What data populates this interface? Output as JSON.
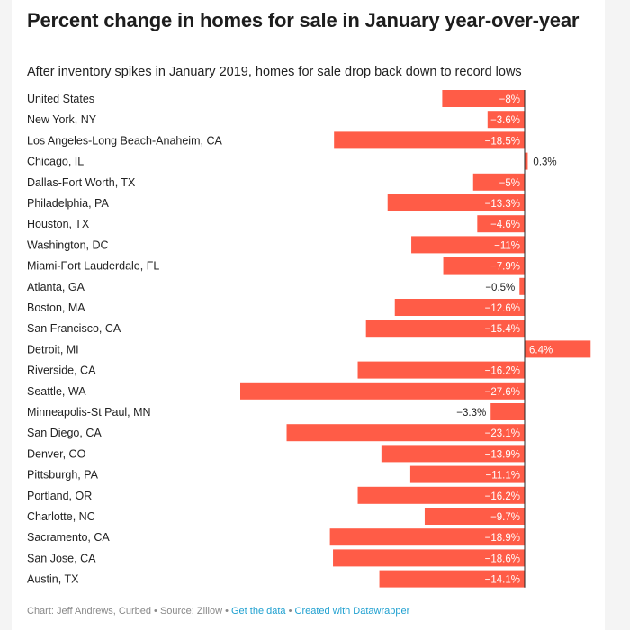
{
  "chart_data": {
    "type": "bar",
    "orientation": "horizontal",
    "title": "Percent change in homes for sale in January year-over-year",
    "subtitle": "After inventory spikes in January 2019, homes for sale drop back down to record lows",
    "categories": [
      "United States",
      "New York, NY",
      "Los Angeles-Long Beach-Anaheim, CA",
      "Chicago, IL",
      "Dallas-Fort Worth, TX",
      "Philadelphia, PA",
      "Houston, TX",
      "Washington, DC",
      "Miami-Fort Lauderdale, FL",
      "Atlanta, GA",
      "Boston, MA",
      "San Francisco, CA",
      "Detroit, MI",
      "Riverside, CA",
      "Seattle, WA",
      "Minneapolis-St Paul, MN",
      "San Diego, CA",
      "Denver, CO",
      "Pittsburgh, PA",
      "Portland, OR",
      "Charlotte, NC",
      "Sacramento, CA",
      "San Jose, CA",
      "Austin, TX"
    ],
    "values": [
      -8,
      -3.6,
      -18.5,
      0.3,
      -5,
      -13.3,
      -4.6,
      -11,
      -7.9,
      -0.5,
      -12.6,
      -15.4,
      6.4,
      -16.2,
      -27.6,
      -3.3,
      -23.1,
      -13.9,
      -11.1,
      -16.2,
      -9.7,
      -18.9,
      -18.6,
      -14.1
    ],
    "value_labels": [
      "−8%",
      "−3.6%",
      "−18.5%",
      "0.3%",
      "−5%",
      "−13.3%",
      "−4.6%",
      "−11%",
      "−7.9%",
      "−0.5%",
      "−12.6%",
      "−15.4%",
      "6.4%",
      "−16.2%",
      "−27.6%",
      "−3.3%",
      "−23.1%",
      "−13.9%",
      "−11.1%",
      "−16.2%",
      "−9.7%",
      "−18.9%",
      "−18.6%",
      "−14.1%"
    ],
    "xlim": [
      -27.6,
      6.4
    ],
    "bar_color": "#ff5c47"
  },
  "footer": {
    "credit": "Chart: Jeff Andrews, Curbed • Source: Zillow • ",
    "get_data": "Get the data",
    "sep": " • ",
    "created_with": "Created with Datawrapper"
  }
}
